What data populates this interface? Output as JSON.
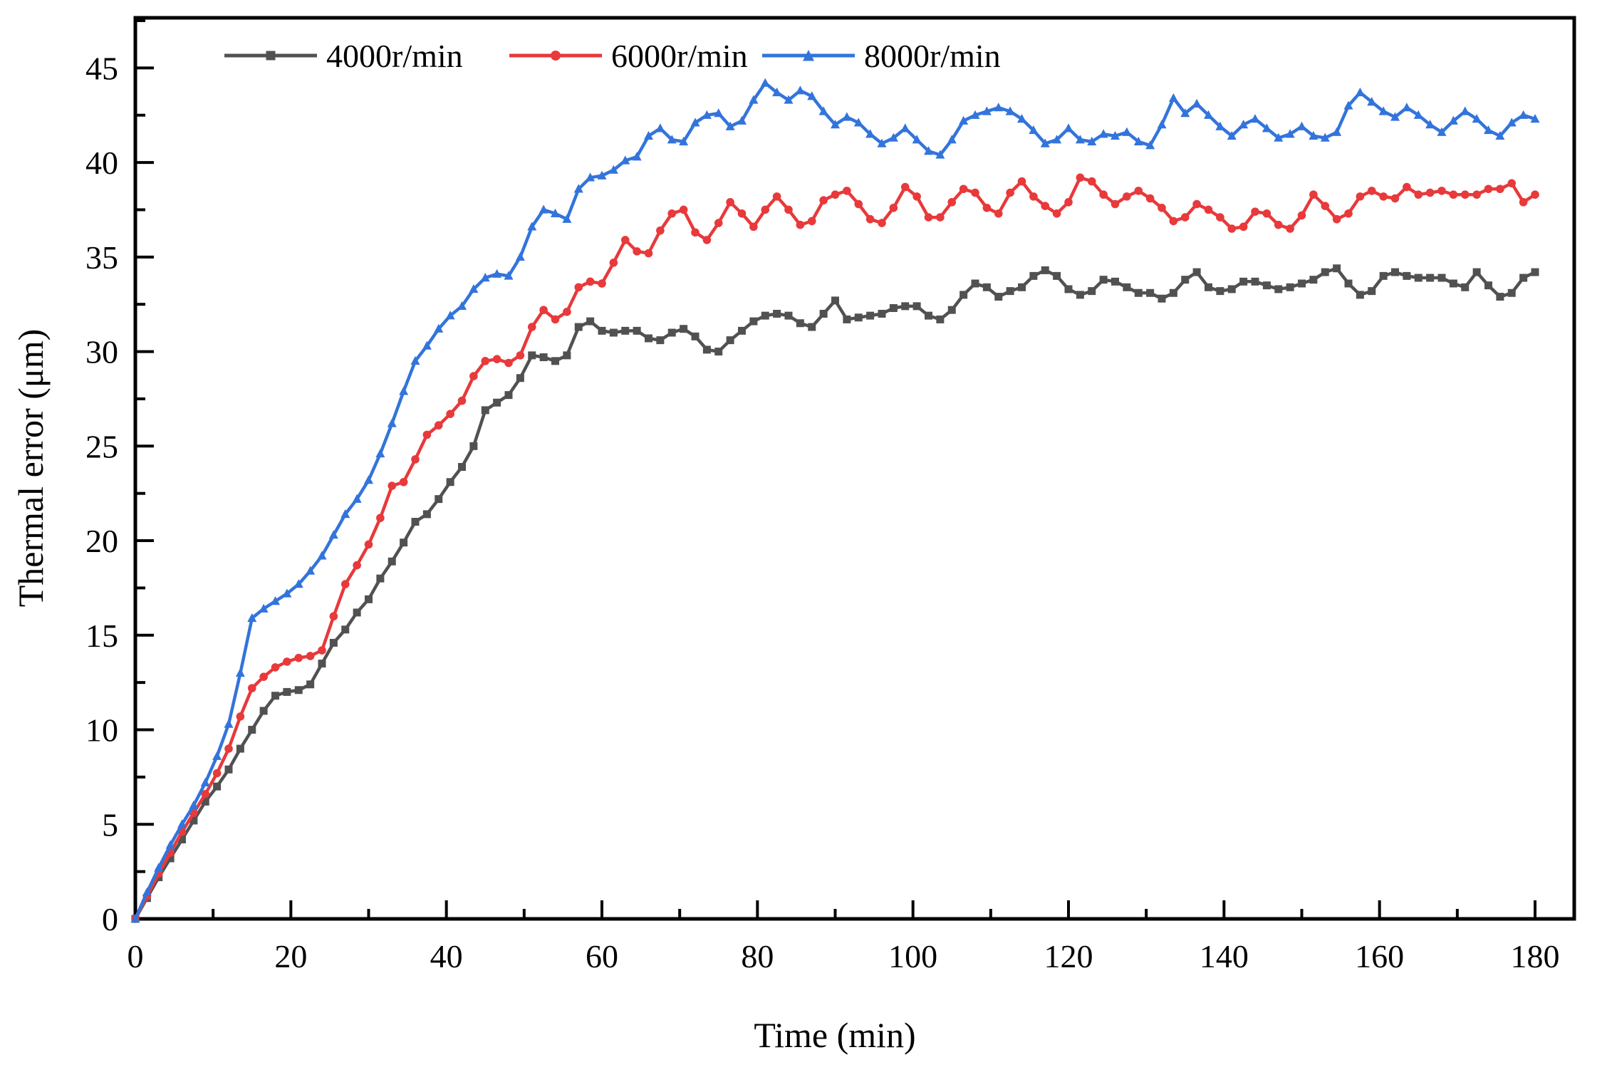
{
  "figure": {
    "background": "#ffffff",
    "frame_color": "#000000"
  },
  "chart_data": {
    "type": "line",
    "title": "",
    "xlabel": "Time (min)",
    "ylabel": "Thermal error (μm)",
    "xlim": [
      0,
      185
    ],
    "ylim": [
      0,
      47.65
    ],
    "x_major_ticks": [
      0,
      20,
      40,
      60,
      80,
      100,
      120,
      140,
      160,
      180
    ],
    "x_minor_ticks": [
      10,
      30,
      50,
      70,
      90,
      110,
      130,
      150,
      170
    ],
    "y_major_ticks": [
      0,
      5,
      10,
      15,
      20,
      25,
      30,
      35,
      40,
      45
    ],
    "y_minor_ticks": [
      2.5,
      7.5,
      12.5,
      17.5,
      22.5,
      27.5,
      32.5,
      37.5,
      42.5,
      47.5
    ],
    "grid": false,
    "legend_position": "top-inside-horizontal",
    "x": [
      0,
      1.5,
      3,
      4.5,
      6,
      7.5,
      9,
      10.5,
      12,
      13.5,
      15,
      16.5,
      18,
      19.5,
      21,
      22.5,
      24,
      25.5,
      27,
      28.5,
      30,
      31.5,
      33,
      34.5,
      36,
      37.5,
      39,
      40.5,
      42,
      43.5,
      45,
      46.5,
      48,
      49.5,
      51,
      52.5,
      54,
      55.5,
      57,
      58.5,
      60,
      61.5,
      63,
      64.5,
      66,
      67.5,
      69,
      70.5,
      72,
      73.5,
      75,
      76.5,
      78,
      79.5,
      81,
      82.5,
      84,
      85.5,
      87,
      88.5,
      90,
      91.5,
      93,
      94.5,
      96,
      97.5,
      99,
      100.5,
      102,
      103.5,
      105,
      106.5,
      108,
      109.5,
      111,
      112.5,
      114,
      115.5,
      117,
      118.5,
      120,
      121.5,
      123,
      124.5,
      126,
      127.5,
      129,
      130.5,
      132,
      133.5,
      135,
      136.5,
      138,
      139.5,
      141,
      142.5,
      144,
      145.5,
      147,
      148.5,
      150,
      151.5,
      153,
      154.5,
      156,
      157.5,
      159,
      160.5,
      162,
      163.5,
      165,
      166.5,
      168,
      169.5,
      171,
      172.5,
      174,
      175.5,
      177,
      178.5,
      180
    ],
    "series": [
      {
        "name": "4000r/min",
        "color": "#515151",
        "marker": "square",
        "values": [
          0.0,
          1.1,
          2.2,
          3.2,
          4.2,
          5.2,
          6.2,
          7.0,
          7.9,
          9.0,
          10.0,
          11.0,
          11.8,
          12.0,
          12.1,
          12.4,
          13.5,
          14.6,
          15.3,
          16.2,
          16.9,
          18.0,
          18.9,
          19.9,
          21.0,
          21.4,
          22.2,
          23.1,
          23.9,
          25.0,
          26.9,
          27.3,
          27.7,
          28.6,
          29.8,
          29.7,
          29.5,
          29.8,
          31.3,
          31.6,
          31.1,
          31.0,
          31.1,
          31.1,
          30.7,
          30.6,
          31.0,
          31.2,
          30.8,
          30.1,
          30.0,
          30.6,
          31.1,
          31.6,
          31.9,
          32.0,
          31.9,
          31.5,
          31.3,
          32.0,
          32.7,
          31.7,
          31.8,
          31.9,
          32.0,
          32.3,
          32.4,
          32.4,
          31.9,
          31.7,
          32.2,
          33.0,
          33.6,
          33.4,
          32.9,
          33.2,
          33.4,
          34.0,
          34.3,
          34.0,
          33.3,
          33.0,
          33.2,
          33.8,
          33.7,
          33.4,
          33.1,
          33.1,
          32.8,
          33.1,
          33.8,
          34.2,
          33.4,
          33.2,
          33.3,
          33.7,
          33.7,
          33.5,
          33.3,
          33.4,
          33.6,
          33.8,
          34.2,
          34.4,
          33.6,
          33.0,
          33.2,
          34.0,
          34.2,
          34.0,
          33.9,
          33.9,
          33.9,
          33.6,
          33.4,
          34.2,
          33.5,
          32.9,
          33.1,
          33.9,
          34.2
        ]
      },
      {
        "name": "6000r/min",
        "color": "#E8393B",
        "marker": "circle",
        "values": [
          0.0,
          1.2,
          2.4,
          3.5,
          4.6,
          5.6,
          6.6,
          7.7,
          9.0,
          10.7,
          12.2,
          12.8,
          13.3,
          13.6,
          13.8,
          13.9,
          14.2,
          16.0,
          17.7,
          18.7,
          19.8,
          21.2,
          22.9,
          23.1,
          24.3,
          25.6,
          26.1,
          26.7,
          27.4,
          28.7,
          29.5,
          29.6,
          29.4,
          29.8,
          31.3,
          32.2,
          31.7,
          32.1,
          33.4,
          33.7,
          33.6,
          34.7,
          35.9,
          35.3,
          35.2,
          36.4,
          37.3,
          37.5,
          36.3,
          35.9,
          36.8,
          37.9,
          37.3,
          36.6,
          37.5,
          38.2,
          37.5,
          36.7,
          36.9,
          38.0,
          38.3,
          38.5,
          37.8,
          37.0,
          36.8,
          37.6,
          38.7,
          38.2,
          37.1,
          37.1,
          37.9,
          38.6,
          38.4,
          37.6,
          37.3,
          38.4,
          39.0,
          38.2,
          37.7,
          37.3,
          37.9,
          39.2,
          39.0,
          38.3,
          37.8,
          38.2,
          38.5,
          38.1,
          37.6,
          36.9,
          37.1,
          37.8,
          37.5,
          37.1,
          36.5,
          36.6,
          37.4,
          37.3,
          36.7,
          36.5,
          37.2,
          38.3,
          37.7,
          37.0,
          37.3,
          38.2,
          38.5,
          38.2,
          38.1,
          38.7,
          38.3,
          38.4,
          38.5,
          38.3,
          38.3,
          38.3,
          38.6,
          38.6,
          38.9,
          37.9,
          38.3
        ]
      },
      {
        "name": "8000r/min",
        "color": "#3374DC",
        "marker": "triangle",
        "values": [
          0.0,
          1.4,
          2.7,
          3.9,
          5.0,
          6.0,
          7.2,
          8.6,
          10.3,
          13.0,
          15.9,
          16.4,
          16.8,
          17.2,
          17.7,
          18.4,
          19.2,
          20.3,
          21.4,
          22.2,
          23.2,
          24.6,
          26.2,
          27.9,
          29.5,
          30.3,
          31.2,
          31.9,
          32.4,
          33.3,
          33.9,
          34.1,
          34.0,
          35.0,
          36.6,
          37.5,
          37.3,
          37.0,
          38.6,
          39.2,
          39.3,
          39.6,
          40.1,
          40.3,
          41.4,
          41.8,
          41.2,
          41.1,
          42.1,
          42.5,
          42.6,
          41.9,
          42.2,
          43.3,
          44.2,
          43.7,
          43.3,
          43.8,
          43.5,
          42.7,
          42.0,
          42.4,
          42.1,
          41.5,
          41.0,
          41.3,
          41.8,
          41.2,
          40.6,
          40.4,
          41.2,
          42.2,
          42.5,
          42.7,
          42.9,
          42.7,
          42.3,
          41.7,
          41.0,
          41.2,
          41.8,
          41.2,
          41.1,
          41.5,
          41.4,
          41.6,
          41.1,
          40.9,
          42.0,
          43.4,
          42.6,
          43.1,
          42.5,
          41.9,
          41.4,
          42.0,
          42.3,
          41.8,
          41.3,
          41.5,
          41.9,
          41.4,
          41.3,
          41.6,
          43.0,
          43.7,
          43.2,
          42.7,
          42.4,
          42.9,
          42.5,
          42.0,
          41.6,
          42.2,
          42.7,
          42.3,
          41.7,
          41.4,
          42.1,
          42.5,
          42.3
        ]
      }
    ]
  }
}
